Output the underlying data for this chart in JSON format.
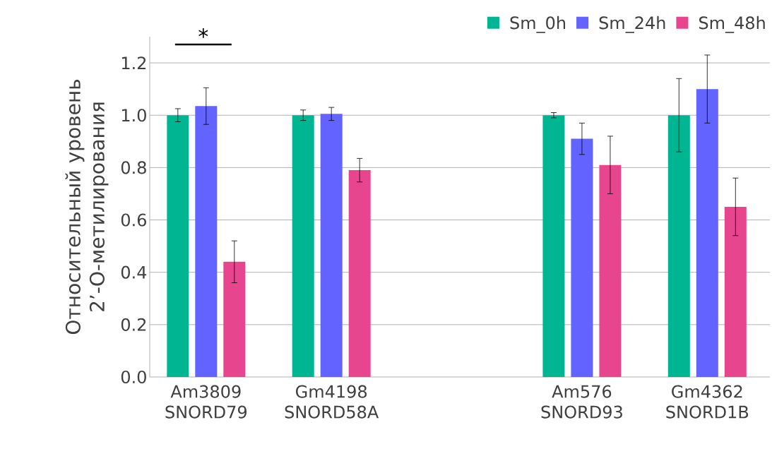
{
  "chart_data": {
    "type": "bar",
    "ylabel": "Относительный уровень 2’-О-метилирования",
    "categories": [
      "Am3809 SNORD79",
      "Gm4198 SNORD58A",
      null,
      "Am576 SNORD93",
      "Gm4362 SNORD1B"
    ],
    "series": [
      {
        "name": "Sm_0h",
        "color": "#00b591",
        "values": [
          1.0,
          1.0,
          null,
          1.0,
          1.0
        ],
        "errors": [
          0.025,
          0.02,
          null,
          0.01,
          0.14
        ]
      },
      {
        "name": "Sm_24h",
        "color": "#6363ff",
        "values": [
          1.035,
          1.005,
          null,
          0.91,
          1.1
        ],
        "errors": [
          0.07,
          0.025,
          null,
          0.06,
          0.13
        ]
      },
      {
        "name": "Sm_48h",
        "color": "#e8458f",
        "values": [
          0.44,
          0.79,
          null,
          0.81,
          0.65
        ],
        "errors": [
          0.08,
          0.045,
          null,
          0.11,
          0.11
        ]
      }
    ],
    "ylim": [
      0,
      1.3
    ],
    "yticks": [
      {
        "value": 0,
        "label": "0.0"
      },
      0.2,
      0.4,
      0.6,
      0.8,
      {
        "value": 1,
        "label": "1.0"
      },
      1.2
    ],
    "grid": "y",
    "legend": "top right",
    "annotations": [
      "*"
    ]
  }
}
